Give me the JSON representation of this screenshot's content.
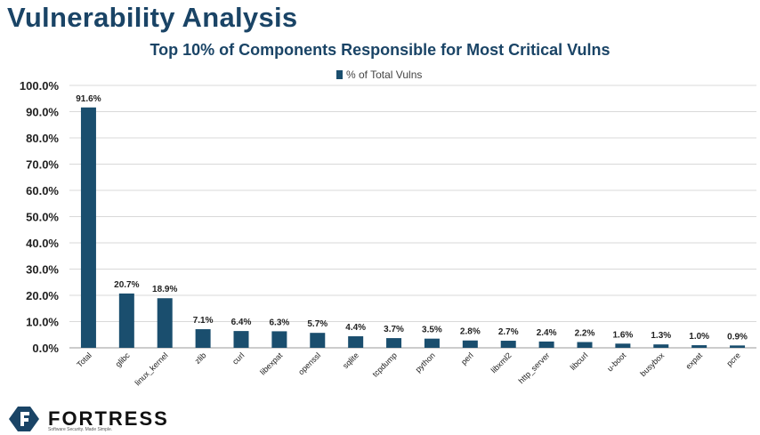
{
  "slide": {
    "title": "Vulnerability Analysis",
    "logo_text": "FORTRESS",
    "logo_tagline": "Software Security. Made Simple.",
    "colors": {
      "title": "#1a4466",
      "bar": "#1a4e6e",
      "grid": "#d9d9d9"
    }
  },
  "chart_data": {
    "type": "bar",
    "title": "Top 10% of Components Responsible for Most Critical Vulns",
    "legend": "top-center",
    "grid": true,
    "xlabel": "",
    "ylabel": "",
    "ylim": [
      0,
      100
    ],
    "yticks": [
      "0.0%",
      "10.0%",
      "20.0%",
      "30.0%",
      "40.0%",
      "50.0%",
      "60.0%",
      "70.0%",
      "80.0%",
      "90.0%",
      "100.0%"
    ],
    "categories": [
      "Total",
      "glibc",
      "linux_kernel",
      "zlib",
      "curl",
      "libexpat",
      "openssl",
      "sqlite",
      "tcpdump",
      "python",
      "perl",
      "libxml2",
      "http_server",
      "libcurl",
      "u-boot",
      "busybox",
      "expat",
      "pcre"
    ],
    "series": [
      {
        "name": "% of Total Vulns",
        "values": [
          91.6,
          20.7,
          18.9,
          7.1,
          6.4,
          6.3,
          5.7,
          4.4,
          3.7,
          3.5,
          2.8,
          2.7,
          2.4,
          2.2,
          1.6,
          1.3,
          1.0,
          0.9
        ],
        "labels": [
          "91.6%",
          "20.7%",
          "18.9%",
          "7.1%",
          "6.4%",
          "6.3%",
          "5.7%",
          "4.4%",
          "3.7%",
          "3.5%",
          "2.8%",
          "2.7%",
          "2.4%",
          "2.2%",
          "1.6%",
          "1.3%",
          "1.0%",
          "0.9%"
        ]
      }
    ]
  }
}
